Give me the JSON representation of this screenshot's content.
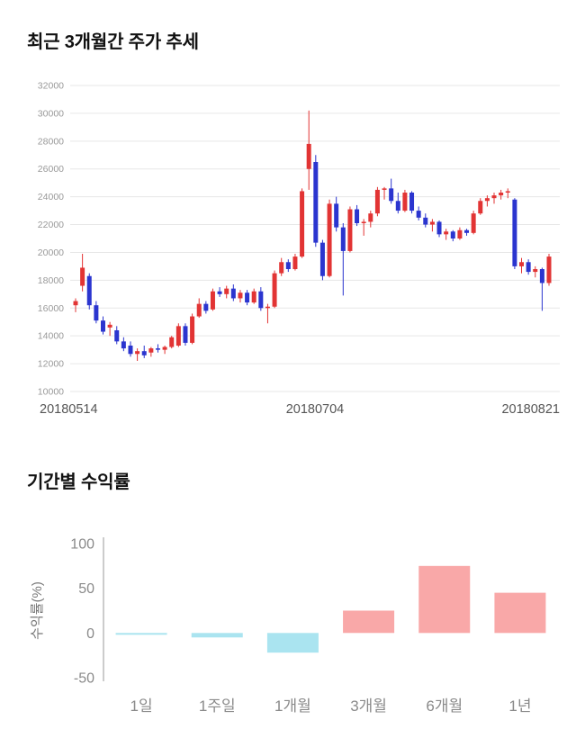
{
  "sections": {
    "price_trend": {
      "title": "최근 3개월간 주가 추세"
    },
    "returns": {
      "title": "기간별 수익률"
    }
  },
  "chart_data": [
    {
      "type": "candlestick",
      "title": "최근 3개월간 주가 추세",
      "ylim": [
        10000,
        32000
      ],
      "yticks": [
        32000,
        30000,
        28000,
        26000,
        24000,
        22000,
        20000,
        18000,
        16000,
        14000,
        12000,
        10000
      ],
      "xtick_labels": [
        "20180514",
        "20180704",
        "20180821"
      ],
      "up_color": "#e23434",
      "down_color": "#2b35cf",
      "grid_color": "#e7e7e7",
      "candles": [
        [
          16200,
          16700,
          15700,
          16500
        ],
        [
          17600,
          19900,
          17200,
          18900
        ],
        [
          18300,
          18500,
          15900,
          16200
        ],
        [
          16200,
          16500,
          14900,
          15100
        ],
        [
          15100,
          15400,
          14100,
          14300
        ],
        [
          14600,
          15000,
          14000,
          14800
        ],
        [
          14400,
          14700,
          13400,
          13600
        ],
        [
          13600,
          13900,
          12900,
          13100
        ],
        [
          13300,
          13600,
          12500,
          12700
        ],
        [
          12700,
          13100,
          12200,
          12900
        ],
        [
          12900,
          13300,
          12400,
          12600
        ],
        [
          12800,
          13200,
          12500,
          13100
        ],
        [
          13100,
          13400,
          12800,
          13000
        ],
        [
          13000,
          13300,
          12700,
          13200
        ],
        [
          13200,
          14000,
          13100,
          13900
        ],
        [
          13300,
          14900,
          13200,
          14700
        ],
        [
          14700,
          14900,
          13300,
          13500
        ],
        [
          13500,
          15600,
          13400,
          15400
        ],
        [
          15400,
          16700,
          15300,
          16300
        ],
        [
          16300,
          16500,
          15600,
          15800
        ],
        [
          15900,
          17400,
          15800,
          17200
        ],
        [
          17200,
          17500,
          16800,
          17000
        ],
        [
          17000,
          17600,
          16700,
          17400
        ],
        [
          17400,
          17700,
          16500,
          16700
        ],
        [
          16700,
          17300,
          16400,
          17100
        ],
        [
          17100,
          17300,
          16200,
          16400
        ],
        [
          16400,
          17400,
          16300,
          17200
        ],
        [
          17200,
          17500,
          15800,
          16000
        ],
        [
          16000,
          16300,
          14900,
          16100
        ],
        [
          16100,
          18700,
          16000,
          18500
        ],
        [
          18500,
          19600,
          18300,
          19300
        ],
        [
          19300,
          19500,
          18600,
          18800
        ],
        [
          18800,
          19900,
          18700,
          19700
        ],
        [
          19700,
          24600,
          19600,
          24400
        ],
        [
          26000,
          30200,
          24500,
          27800
        ],
        [
          26500,
          27000,
          20400,
          20700
        ],
        [
          20700,
          20900,
          18000,
          18300
        ],
        [
          18300,
          23800,
          18200,
          23500
        ],
        [
          23500,
          24000,
          21500,
          21800
        ],
        [
          21800,
          22100,
          16900,
          20100
        ],
        [
          20100,
          23300,
          20000,
          23100
        ],
        [
          23100,
          23400,
          21900,
          22100
        ],
        [
          22100,
          22400,
          21200,
          22200
        ],
        [
          22200,
          23000,
          21800,
          22800
        ],
        [
          22800,
          24700,
          22600,
          24500
        ],
        [
          24500,
          24700,
          23800,
          24600
        ],
        [
          24600,
          25300,
          23500,
          23700
        ],
        [
          23700,
          24300,
          22800,
          23000
        ],
        [
          23000,
          24500,
          22900,
          24300
        ],
        [
          24300,
          24400,
          22800,
          23000
        ],
        [
          23000,
          23300,
          22300,
          22500
        ],
        [
          22500,
          22800,
          21800,
          22000
        ],
        [
          22000,
          22400,
          21500,
          22200
        ],
        [
          22200,
          22300,
          21100,
          21300
        ],
        [
          21300,
          21700,
          20900,
          21500
        ],
        [
          21500,
          21600,
          20800,
          21000
        ],
        [
          21000,
          21800,
          20900,
          21600
        ],
        [
          21600,
          21700,
          21200,
          21400
        ],
        [
          21400,
          23000,
          21300,
          22800
        ],
        [
          22800,
          23900,
          22700,
          23700
        ],
        [
          23700,
          24100,
          23300,
          23900
        ],
        [
          23900,
          24300,
          23500,
          24100
        ],
        [
          24100,
          24500,
          23800,
          24300
        ],
        [
          24300,
          24600,
          23900,
          24400
        ],
        [
          23800,
          23900,
          18800,
          19000
        ],
        [
          19000,
          19600,
          18500,
          19300
        ],
        [
          19300,
          19500,
          18400,
          18600
        ],
        [
          18600,
          19000,
          18200,
          18800
        ],
        [
          18800,
          18900,
          15800,
          17800
        ],
        [
          17800,
          19900,
          17600,
          19700
        ]
      ]
    },
    {
      "type": "bar",
      "title": "기간별 수익률",
      "categories": [
        "1일",
        "1주일",
        "1개월",
        "3개월",
        "6개월",
        "1년"
      ],
      "values": [
        -2,
        -5,
        -22,
        25,
        75,
        45
      ],
      "ylabel": "수익률(%)",
      "ylim": [
        -50,
        100
      ],
      "yticks": [
        100,
        50,
        0,
        -50
      ],
      "positive_color": "#f9a8a8",
      "negative_color": "#aae4f0",
      "axis_color": "#9a9a9a"
    }
  ]
}
